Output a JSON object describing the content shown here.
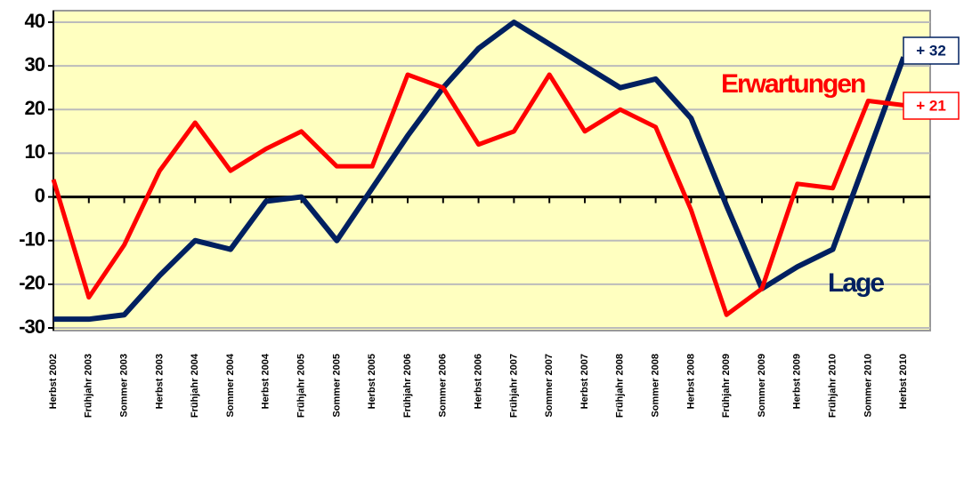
{
  "chart_data": {
    "type": "line",
    "categories": [
      "Herbst 2002",
      "Frühjahr 2003",
      "Sommer 2003",
      "Herbst 2003",
      "Frühjahr 2004",
      "Sommer 2004",
      "Herbst 2004",
      "Frühjahr 2005",
      "Sommer 2005",
      "Herbst 2005",
      "Frühjahr 2006",
      "Sommer 2006",
      "Herbst 2006",
      "Frühjahr 2007",
      "Sommer 2007",
      "Herbst 2007",
      "Frühjahr 2008",
      "Sommer 2008",
      "Herbst 2008",
      "Frühjahr 2009",
      "Sommer 2009",
      "Herbst 2009",
      "Frühjahr 2010",
      "Sommer 2010",
      "Herbst 2010"
    ],
    "series": [
      {
        "name": "Lage",
        "color": "#002060",
        "values": [
          -28,
          -28,
          -27,
          -18,
          -10,
          -12,
          -1,
          0,
          -10,
          2,
          14,
          25,
          34,
          40,
          35,
          30,
          25,
          27,
          18,
          -2,
          -21,
          -16,
          -12,
          10,
          32
        ],
        "end_label": "+ 32"
      },
      {
        "name": "Erwartungen",
        "color": "#ff0000",
        "values": [
          4,
          -23,
          -11,
          6,
          17,
          6,
          11,
          15,
          7,
          7,
          28,
          25,
          12,
          15,
          28,
          15,
          20,
          16,
          -3,
          -27,
          -21,
          3,
          2,
          22,
          21
        ],
        "end_label": "+ 21"
      }
    ],
    "ylim": [
      -30,
      40
    ],
    "yticks": [
      -30,
      -20,
      -10,
      0,
      10,
      20,
      30,
      40
    ],
    "grid": true
  }
}
